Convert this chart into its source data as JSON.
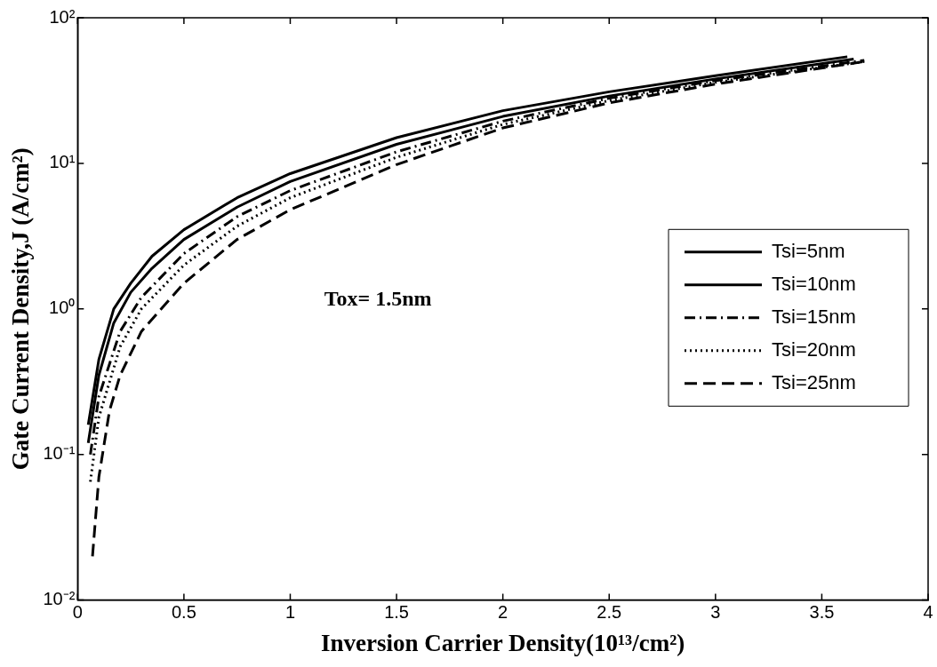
{
  "chart_data": {
    "type": "line",
    "xlabel": "Inversion Carrier Density(10¹³/cm²)",
    "ylabel": "Gate Current Density,J (A/cm²)",
    "log": "y",
    "xlim": [
      0,
      4
    ],
    "xticks": [
      0,
      0.5,
      1,
      1.5,
      2,
      2.5,
      3,
      3.5,
      4
    ],
    "ylim": [
      0.01,
      100
    ],
    "yticks": [
      {
        "value": 0.01,
        "label": "10⁻²"
      },
      {
        "value": 0.1,
        "label": "10⁻¹"
      },
      {
        "value": 1,
        "label": "10⁰"
      },
      {
        "value": 10,
        "label": "10¹"
      },
      {
        "value": 100,
        "label": "10²"
      }
    ],
    "grid": false,
    "legend": "right",
    "marker": "none",
    "annotations": [
      "Tox= 1.5nm"
    ],
    "series": [
      {
        "name": "Tsi=5nm",
        "color": "#000000",
        "line_style": "solid",
        "x": [
          0.05,
          0.1,
          0.17,
          0.25,
          0.35,
          0.5,
          0.75,
          1,
          1.5,
          2,
          2.5,
          3,
          3.62
        ],
        "values": [
          0.16,
          0.45,
          1.0,
          1.5,
          2.3,
          3.5,
          5.8,
          8.5,
          15,
          23,
          31,
          40,
          54
        ]
      },
      {
        "name": "Tsi=10nm",
        "color": "#000000",
        "line_style": "solid",
        "x": [
          0.05,
          0.1,
          0.17,
          0.25,
          0.35,
          0.5,
          0.75,
          1,
          1.5,
          2,
          2.5,
          3,
          3.65
        ],
        "values": [
          0.12,
          0.35,
          0.8,
          1.3,
          1.9,
          3.0,
          5,
          7.5,
          13.5,
          21,
          29,
          38,
          52
        ]
      },
      {
        "name": "Tsi=15nm",
        "color": "#000000",
        "line_style": "dashdot",
        "x": [
          0.06,
          0.1,
          0.2,
          0.3,
          0.5,
          0.75,
          1,
          1.5,
          2,
          2.5,
          3,
          3.7
        ],
        "values": [
          0.1,
          0.25,
          0.7,
          1.2,
          2.4,
          4.3,
          6.5,
          12,
          19.5,
          28,
          37,
          51
        ]
      },
      {
        "name": "Tsi=20nm",
        "color": "#000000",
        "line_style": "dotted",
        "x": [
          0.06,
          0.1,
          0.2,
          0.3,
          0.5,
          0.75,
          1,
          1.5,
          2,
          2.5,
          3,
          3.7
        ],
        "values": [
          0.065,
          0.18,
          0.55,
          1.0,
          2.0,
          3.7,
          5.8,
          11,
          18.5,
          27,
          36,
          50
        ]
      },
      {
        "name": "Tsi=25nm",
        "color": "#000000",
        "line_style": "dashed",
        "x": [
          0.07,
          0.1,
          0.15,
          0.2,
          0.3,
          0.5,
          0.75,
          1,
          1.5,
          2,
          2.5,
          3,
          3.7
        ],
        "values": [
          0.02,
          0.07,
          0.2,
          0.35,
          0.7,
          1.5,
          3.0,
          4.8,
          9.8,
          17.5,
          26,
          35,
          50
        ]
      }
    ]
  }
}
